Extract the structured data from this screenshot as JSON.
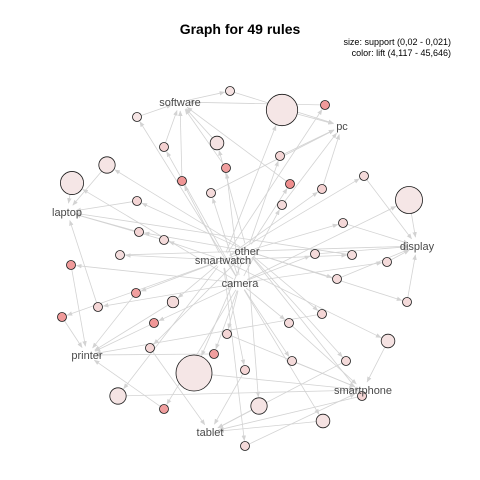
{
  "title": "Graph for 49 rules",
  "legend": {
    "size_text": "size: support (0,02 - 0,021)",
    "color_text": "color: lift (4,117 - 45,646)"
  },
  "colors": {
    "edge": "#d3d3d3",
    "node_low_lift": "#f5e6e6",
    "node_high_lift": "#ef8e8e",
    "node_stroke": "#1a1a1a",
    "item_label": "#4a4a4a"
  },
  "items": [
    "software",
    "pc",
    "laptop",
    "other",
    "smartwatch",
    "display",
    "camera",
    "printer",
    "smartphone",
    "tablet"
  ],
  "rules": [
    {
      "id": 1,
      "lhs": [
        "software"
      ],
      "rhs": "pc",
      "support": 0.0201,
      "lift": 6.0
    },
    {
      "id": 2,
      "lhs": [
        "camera"
      ],
      "rhs": "software",
      "support": 0.0201,
      "lift": 5.0
    },
    {
      "id": 3,
      "lhs": [
        "smartwatch"
      ],
      "rhs": "pc",
      "support": 0.0209,
      "lift": 4.117
    },
    {
      "id": 4,
      "lhs": [
        "other"
      ],
      "rhs": "software",
      "support": 0.0204,
      "lift": 6.0
    },
    {
      "id": 5,
      "lhs": [
        "camera"
      ],
      "rhs": "software",
      "support": 0.0201,
      "lift": 14.0
    },
    {
      "id": 6,
      "lhs": [
        "smartwatch"
      ],
      "rhs": "software",
      "support": 0.0201,
      "lift": 40.0
    },
    {
      "id": 7,
      "lhs": [
        "other"
      ],
      "rhs": "laptop",
      "support": 0.0205,
      "lift": 5.0
    },
    {
      "id": 8,
      "lhs": [
        "camera"
      ],
      "rhs": "software",
      "support": 0.0201,
      "lift": 38.0
    },
    {
      "id": 9,
      "lhs": [
        "other"
      ],
      "rhs": "pc",
      "support": 0.0201,
      "lift": 12.0
    },
    {
      "id": 10,
      "lhs": [
        "camera"
      ],
      "rhs": "laptop",
      "support": 0.0207,
      "lift": 4.2
    },
    {
      "id": 11,
      "lhs": [
        "smartwatch"
      ],
      "rhs": "software",
      "support": 0.0201,
      "lift": 42.0
    },
    {
      "id": 12,
      "lhs": [
        "camera"
      ],
      "rhs": "pc",
      "support": 0.0201,
      "lift": 10.0
    },
    {
      "id": 13,
      "lhs": [
        "other"
      ],
      "rhs": "software",
      "support": 0.0201,
      "lift": 45.646
    },
    {
      "id": 14,
      "lhs": [
        "smartwatch"
      ],
      "rhs": "pc",
      "support": 0.0201,
      "lift": 14.0
    },
    {
      "id": 15,
      "lhs": [
        "other"
      ],
      "rhs": "laptop",
      "support": 0.0201,
      "lift": 12.0
    },
    {
      "id": 16,
      "lhs": [
        "camera"
      ],
      "rhs": "pc",
      "support": 0.0201,
      "lift": 10.0
    },
    {
      "id": 17,
      "lhs": [
        "smartwatch"
      ],
      "rhs": "display",
      "support": 0.0201,
      "lift": 10.0
    },
    {
      "id": 18,
      "lhs": [
        "camera"
      ],
      "rhs": "display",
      "support": 0.0208,
      "lift": 4.3
    },
    {
      "id": 19,
      "lhs": [
        "other"
      ],
      "rhs": "laptop",
      "support": 0.0201,
      "lift": 12.0
    },
    {
      "id": 20,
      "lhs": [
        "smartwatch"
      ],
      "rhs": "laptop",
      "support": 0.0201,
      "lift": 10.0
    },
    {
      "id": 21,
      "lhs": [
        "other"
      ],
      "rhs": "display",
      "support": 0.0201,
      "lift": 11.0
    },
    {
      "id": 22,
      "lhs": [
        "camera"
      ],
      "rhs": "display",
      "support": 0.0201,
      "lift": 10.0
    },
    {
      "id": 23,
      "lhs": [
        "smartwatch"
      ],
      "rhs": "laptop",
      "support": 0.0201,
      "lift": 9.0
    },
    {
      "id": 24,
      "lhs": [
        "camera"
      ],
      "rhs": "display",
      "support": 0.0201,
      "lift": 10.0
    },
    {
      "id": 25,
      "lhs": [
        "smartwatch"
      ],
      "rhs": "display",
      "support": 0.0201,
      "lift": 9.0
    },
    {
      "id": 26,
      "lhs": [
        "other"
      ],
      "rhs": "display",
      "support": 0.0201,
      "lift": 10.0
    },
    {
      "id": 27,
      "lhs": [
        "camera"
      ],
      "rhs": "printer",
      "support": 0.0201,
      "lift": 40.0
    },
    {
      "id": 28,
      "lhs": [
        "other"
      ],
      "rhs": "printer",
      "support": 0.0201,
      "lift": 38.0
    },
    {
      "id": 29,
      "lhs": [
        "smartwatch"
      ],
      "rhs": "printer",
      "support": 0.0203,
      "lift": 10.0
    },
    {
      "id": 30,
      "lhs": [
        "camera"
      ],
      "rhs": "laptop",
      "support": 0.0201,
      "lift": 12.0
    },
    {
      "id": 31,
      "lhs": [
        "other"
      ],
      "rhs": "display",
      "support": 0.0201,
      "lift": 10.0
    },
    {
      "id": 32,
      "lhs": [
        "camera"
      ],
      "rhs": "printer",
      "support": 0.0201,
      "lift": 42.0
    },
    {
      "id": 33,
      "lhs": [
        "smartwatch"
      ],
      "rhs": "printer",
      "support": 0.0201,
      "lift": 40.0
    },
    {
      "id": 34,
      "lhs": [
        "camera"
      ],
      "rhs": "smartphone",
      "support": 0.0201,
      "lift": 12.0
    },
    {
      "id": 35,
      "lhs": [
        "other"
      ],
      "rhs": "tablet",
      "support": 0.0201,
      "lift": 12.0
    },
    {
      "id": 36,
      "lhs": [
        "camera"
      ],
      "rhs": "smartphone",
      "support": 0.0201,
      "lift": 10.0
    },
    {
      "id": 37,
      "lhs": [
        "other"
      ],
      "rhs": "printer",
      "support": 0.0201,
      "lift": 12.0
    },
    {
      "id": 38,
      "lhs": [
        "smartwatch"
      ],
      "rhs": "smartphone",
      "support": 0.0204,
      "lift": 6.0
    },
    {
      "id": 39,
      "lhs": [
        "camera"
      ],
      "rhs": "printer",
      "support": 0.0201,
      "lift": 38.0
    },
    {
      "id": 40,
      "lhs": [
        "other"
      ],
      "rhs": "tablet",
      "support": 0.0201,
      "lift": 10.0
    },
    {
      "id": 41,
      "lhs": [
        "smartwatch"
      ],
      "rhs": "tablet",
      "support": 0.0201,
      "lift": 12.0
    },
    {
      "id": 42,
      "lhs": [
        "camera"
      ],
      "rhs": "smartphone",
      "support": 0.0201,
      "lift": 10.0
    },
    {
      "id": 43,
      "lhs": [
        "other"
      ],
      "rhs": "smartphone",
      "support": 0.021,
      "lift": 4.117
    },
    {
      "id": 44,
      "lhs": [
        "smartwatch"
      ],
      "rhs": "smartphone",
      "support": 0.0205,
      "lift": 5.0
    },
    {
      "id": 45,
      "lhs": [
        "camera"
      ],
      "rhs": "printer",
      "support": 0.0201,
      "lift": 38.0
    },
    {
      "id": 46,
      "lhs": [
        "other"
      ],
      "rhs": "tablet",
      "support": 0.0205,
      "lift": 5.0
    },
    {
      "id": 47,
      "lhs": [
        "camera"
      ],
      "rhs": "tablet",
      "support": 0.0204,
      "lift": 6.0
    },
    {
      "id": 48,
      "lhs": [
        "smartwatch"
      ],
      "rhs": "smartphone",
      "support": 0.0201,
      "lift": 10.0
    },
    {
      "id": 49,
      "lhs": [
        "other"
      ],
      "rhs": "tablet",
      "support": 0.0201,
      "lift": 12.0
    }
  ]
}
